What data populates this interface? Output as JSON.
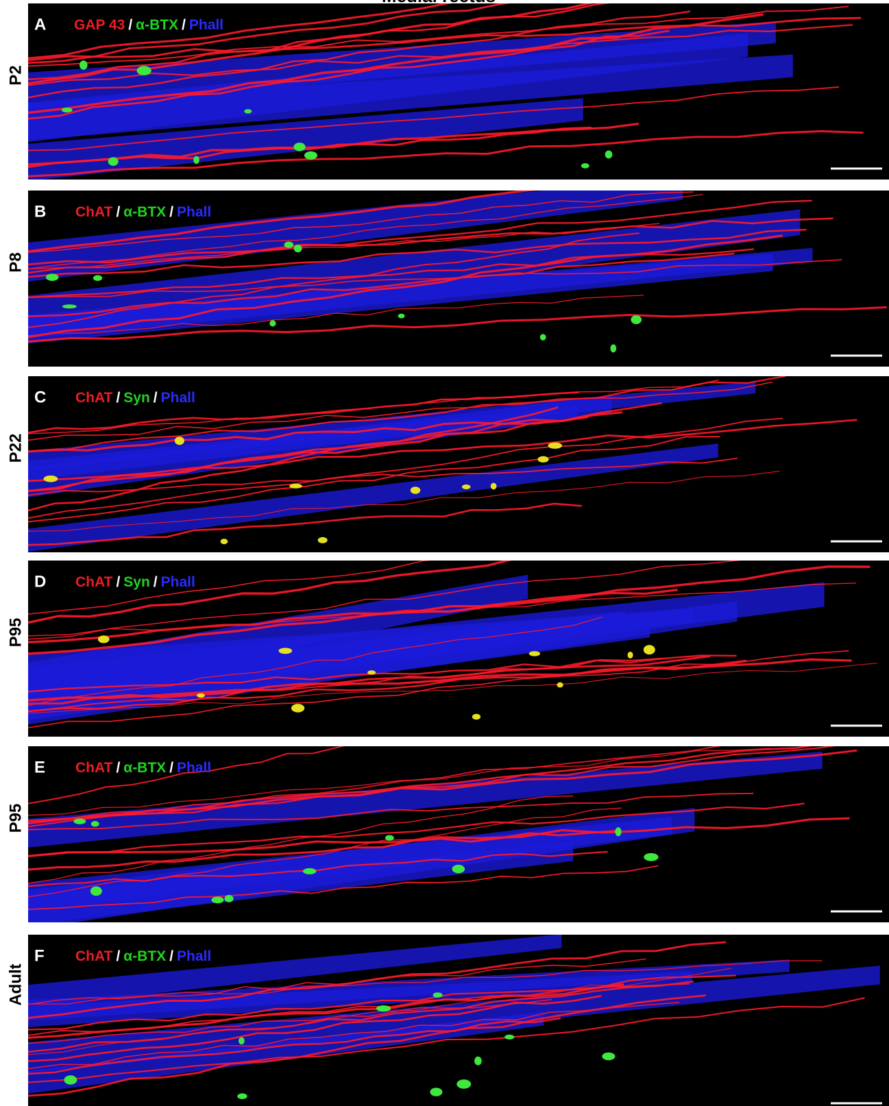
{
  "title": "Medial rectus",
  "separator": "/",
  "panels": [
    {
      "letter": "A",
      "age": "P2",
      "stains": [
        {
          "text": "GAP 43",
          "color": "#ec1c24"
        },
        {
          "text": "α-BTX",
          "color": "#22d322"
        },
        {
          "text": "Phall",
          "color": "#2a2aff"
        }
      ]
    },
    {
      "letter": "B",
      "age": "P8",
      "stains": [
        {
          "text": "ChAT",
          "color": "#ec1c24"
        },
        {
          "text": "α-BTX",
          "color": "#22d322"
        },
        {
          "text": "Phall",
          "color": "#2a2aff"
        }
      ]
    },
    {
      "letter": "C",
      "age": "P22",
      "stains": [
        {
          "text": "ChAT",
          "color": "#ec1c24"
        },
        {
          "text": "Syn",
          "color": "#22d322"
        },
        {
          "text": "Phall",
          "color": "#2a2aff"
        }
      ]
    },
    {
      "letter": "D",
      "age": "P95",
      "stains": [
        {
          "text": "ChAT",
          "color": "#ec1c24"
        },
        {
          "text": "Syn",
          "color": "#22d322"
        },
        {
          "text": "Phall",
          "color": "#2a2aff"
        }
      ]
    },
    {
      "letter": "E",
      "age": "P95",
      "stains": [
        {
          "text": "ChAT",
          "color": "#ec1c24"
        },
        {
          "text": "α-BTX",
          "color": "#22d322"
        },
        {
          "text": "Phall",
          "color": "#2a2aff"
        }
      ]
    },
    {
      "letter": "F",
      "age": "Adult",
      "stains": [
        {
          "text": "ChAT",
          "color": "#ec1c24"
        },
        {
          "text": "α-BTX",
          "color": "#22d322"
        },
        {
          "text": "Phall",
          "color": "#2a2aff"
        }
      ]
    }
  ]
}
